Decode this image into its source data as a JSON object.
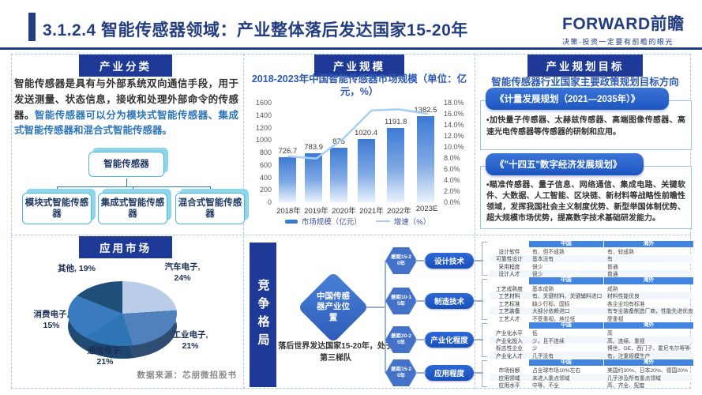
{
  "colors": {
    "navy": "#1e3a96",
    "title_navy": "#233e80",
    "highlight_blue": "#2e75b6",
    "chart_bar_blue": "#3d7ad4",
    "growth_line_blue": "#a8cdf0",
    "cyan_shadow": "#8ed6ec",
    "table_header_blue": "#4285e0",
    "button_blue": "#1e56c0",
    "hexagon_blue": "#4472c9"
  },
  "header": {
    "title": "3.1.2.4 智能传感器领域：产业整体落后发达国家15-20年",
    "logo_text": "FORWARD前瞻",
    "logo_tagline": "决策·投资一定要有前瞻的眼光"
  },
  "classification": {
    "badge": "产业分类",
    "desc_normal": "智能传感器是具有与外部系统双向通信手段，用于发送测量、状态信息，接收和处理外部命令的传感器。",
    "desc_highlight": "智能传感器可以分为模块式智能传感器、集成式智能传感器和混合式智能传感器。",
    "tree": {
      "root": "智能传感器",
      "children": [
        "模块式智能传感器",
        "集成式智能传感器",
        "混合式智能传感器"
      ]
    }
  },
  "scale": {
    "badge": "产业规模"
  },
  "application": {
    "badge": "应用市场",
    "source": "数据来源：芯朋微招股书"
  },
  "planning": {
    "badge": "产业规划目标",
    "subtitle": "智能传感器行业国家主要政策规划目标方向",
    "policies": [
      {
        "title": "《计量发展规划（2021—2035年）》",
        "content": "•加快量子传感器、太赫兹传感器、高端图像传感器、高速光电传感器等传感器的研制和应用。"
      },
      {
        "title": "《\"十四五\"数字经济发展规划》",
        "content": "•瞄准传感器、量子信息、网络通信、集成电路、关键软件、大数据、人工智能、区块链、新材料等战略性前瞻性领域，发挥我国社会主义制度优势、新型举国体制优势、超大规模市场优势，提高数字技术基础研发能力。"
      }
    ]
  },
  "competition": {
    "badge": "竞争格局",
    "diamond": "中国传感器产业位置",
    "caption": "落后世界发达国家15-20年，处于第三梯队",
    "branches": [
      {
        "gap": "差距15-20年",
        "label": "设计技术"
      },
      {
        "gap": "差距10-15年",
        "label": "制造技术"
      },
      {
        "gap": "差距20-25年",
        "label": "产业化程度"
      },
      {
        "gap": "差距15-20年",
        "label": "应用程度"
      }
    ]
  },
  "comparison_table": {
    "col_cn": "中国",
    "col_overseas": "海外",
    "sections": [
      {
        "rows": [
          [
            "设计软件",
            "有、但不成熟",
            "有、较成熟"
          ],
          [
            "可靠性设计",
            "基本没有",
            "有"
          ],
          [
            "采用程度",
            "很少",
            "普通"
          ],
          [
            "设计人才",
            "很少",
            "普通"
          ]
        ]
      },
      {
        "rows": [
          [
            "工艺成熟度",
            "基本成熟",
            "成熟"
          ],
          [
            "工艺材料",
            "有、关键材料、关键辅料进口",
            "材料性能优良"
          ],
          [
            "工艺标准",
            "缺少行标、国标",
            "各企业均有标准"
          ],
          [
            "工艺装备",
            "大部分依赖进口",
            "有专业装备制造厂商，性能先进优良"
          ],
          [
            "工艺人才",
            "不受重视，地位低",
            "受重视"
          ]
        ]
      },
      {
        "rows": [
          [
            "产业化水平",
            "低",
            "高"
          ],
          [
            "产业化投入",
            "少，且不连续",
            "高、连续、重视"
          ],
          [
            "标志性企业",
            "少",
            "博世、GE、西门子、霍尼韦尔等等"
          ],
          [
            "产业化人才",
            "几乎没有",
            "有，注重规模生产"
          ]
        ]
      },
      {
        "rows": [
          [
            "市场份额",
            "占全球市场10%左右",
            "美国约30%、日本20%、德国20%"
          ],
          [
            "应用领域",
            "未进入重点领域",
            "几乎涉及所有重点领域"
          ],
          [
            "应用水平",
            "中等、不全",
            "高、齐全、配套"
          ]
        ]
      }
    ]
  },
  "chart_data": [
    {
      "type": "bar",
      "title": "2018-2023年中国智能传感器市场规模（单位：亿元，%）",
      "categories": [
        "2018年",
        "2019年",
        "2020年",
        "2021年",
        "2022年",
        "2023E"
      ],
      "series": [
        {
          "name": "市场规模（亿元）",
          "type": "bar",
          "values": [
            726.7,
            783.9,
            875,
            1020.4,
            1191.8,
            1382.5
          ],
          "labels": [
            "726.7",
            "783.9",
            "875",
            "1020.4",
            "1191.8",
            "1382.5"
          ]
        },
        {
          "name": "增速（%）",
          "type": "line",
          "values": [
            8.3,
            7.9,
            11.6,
            16.6,
            16.8,
            16.0
          ]
        }
      ],
      "ylim_left": [
        0,
        1600
      ],
      "y_step_left": 200,
      "ylim_right": [
        0,
        18
      ],
      "y_step_right": 2,
      "grid": false,
      "legend_position": "bottom"
    },
    {
      "type": "pie",
      "labels": [
        "汽车电子",
        "工业电子",
        "通信电子",
        "消费电子",
        "其他"
      ],
      "values": [
        24,
        21,
        21,
        15,
        19
      ],
      "colors": [
        "#b9cde8",
        "#4f81bd",
        "#2e75b6",
        "#3a7bc0",
        "#1f4e79"
      ],
      "label_display": [
        "汽车电子,\n24%",
        "工业电子,\n21%",
        "通信电子,\n21%",
        "消费电子,\n15%",
        "其他, 19%"
      ]
    }
  ]
}
